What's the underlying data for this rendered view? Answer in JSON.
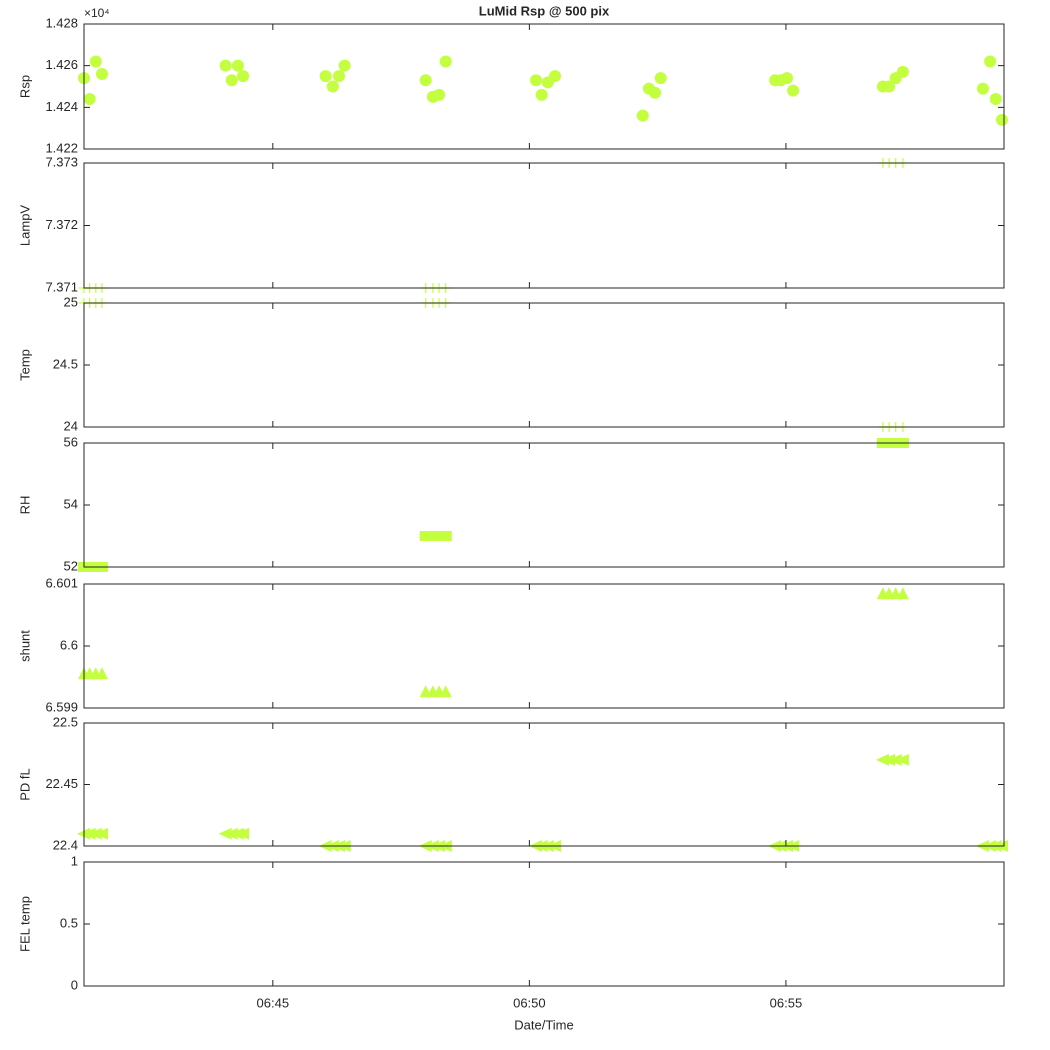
{
  "chart_data": [
    {
      "type": "scatter",
      "title": "LuMid Rsp @ 500 pix",
      "y_label": "Rsp",
      "y_exponent": "×10⁴",
      "marker": "circle",
      "color": "#c3ff3f",
      "x": [
        41.32,
        41.43,
        41.55,
        41.67,
        44.08,
        44.2,
        44.32,
        44.42,
        46.03,
        46.17,
        46.29,
        46.4,
        47.98,
        48.12,
        48.24,
        48.37,
        50.13,
        50.24,
        50.36,
        50.5,
        52.21,
        52.33,
        52.45,
        52.56,
        54.79,
        54.9,
        55.02,
        55.14,
        56.89,
        57.01,
        57.14,
        57.28,
        58.84,
        58.98,
        59.09,
        59.21
      ],
      "values": [
        1.4254,
        1.4244,
        1.4262,
        1.4256,
        1.426,
        1.4253,
        1.426,
        1.4255,
        1.4255,
        1.425,
        1.4255,
        1.426,
        1.4253,
        1.4245,
        1.4246,
        1.4262,
        1.4253,
        1.4246,
        1.4252,
        1.4255,
        1.4236,
        1.4249,
        1.4247,
        1.4254,
        1.4253,
        1.4253,
        1.4254,
        1.4248,
        1.425,
        1.425,
        1.4254,
        1.4257,
        1.4249,
        1.4262,
        1.4244,
        1.4234
      ],
      "xlim": [
        41.32,
        59.25
      ],
      "xticks": [
        45,
        50,
        55
      ],
      "ylim": [
        1.422,
        1.428
      ],
      "yticks": [
        1.422,
        1.424,
        1.426,
        1.428
      ]
    },
    {
      "type": "scatter",
      "y_label": "LampV",
      "marker": "plus",
      "color": "#c3ff3f",
      "x": [
        41.32,
        41.43,
        41.55,
        41.67,
        47.98,
        48.12,
        48.24,
        48.37,
        56.89,
        57.01,
        57.14,
        57.28
      ],
      "values": [
        7.371,
        7.371,
        7.371,
        7.371,
        7.371,
        7.371,
        7.371,
        7.371,
        7.373,
        7.373,
        7.373,
        7.373
      ],
      "xlim": [
        41.32,
        59.25
      ],
      "xticks": [
        45,
        50,
        55
      ],
      "ylim": [
        7.371,
        7.373
      ],
      "yticks": [
        7.371,
        7.372,
        7.373
      ]
    },
    {
      "type": "scatter",
      "y_label": "Temp",
      "marker": "plus",
      "color": "#c3ff3f",
      "x": [
        41.32,
        41.43,
        41.55,
        41.67,
        47.98,
        48.12,
        48.24,
        48.37,
        56.89,
        57.01,
        57.14,
        57.28
      ],
      "values": [
        25,
        25,
        25,
        25,
        25,
        25,
        25,
        25,
        24,
        24,
        24,
        24
      ],
      "xlim": [
        41.32,
        59.25
      ],
      "xticks": [
        45,
        50,
        55
      ],
      "ylim": [
        24,
        25
      ],
      "yticks": [
        24,
        24.5,
        25
      ]
    },
    {
      "type": "scatter",
      "y_label": "RH",
      "marker": "square",
      "color": "#c3ff3f",
      "x": [
        41.32,
        41.43,
        41.55,
        41.67,
        47.98,
        48.12,
        48.24,
        48.37,
        56.89,
        57.01,
        57.14,
        57.28
      ],
      "values": [
        52,
        52,
        52,
        52,
        53,
        53,
        53,
        53,
        56,
        56,
        56,
        56
      ],
      "xlim": [
        41.32,
        59.25
      ],
      "xticks": [
        45,
        50,
        55
      ],
      "ylim": [
        52,
        56
      ],
      "yticks": [
        52,
        54,
        56
      ]
    },
    {
      "type": "scatter",
      "y_label": "shunt",
      "marker": "triangle-up",
      "color": "#c3ff3f",
      "x": [
        41.32,
        41.43,
        41.55,
        41.67,
        47.98,
        48.12,
        48.24,
        48.37,
        56.89,
        57.01,
        57.14,
        57.28
      ],
      "values": [
        6.59956,
        6.59956,
        6.59956,
        6.59956,
        6.59927,
        6.59927,
        6.59927,
        6.59927,
        6.60085,
        6.60085,
        6.60085,
        6.60085
      ],
      "xlim": [
        41.32,
        59.25
      ],
      "xticks": [
        45,
        50,
        55
      ],
      "ylim": [
        6.599,
        6.601
      ],
      "yticks": [
        6.599,
        6.6,
        6.601
      ]
    },
    {
      "type": "scatter",
      "y_label": "PD fL",
      "marker": "triangle-left",
      "color": "#c3ff3f",
      "x": [
        41.32,
        41.43,
        41.55,
        41.67,
        44.08,
        44.2,
        44.32,
        44.42,
        46.03,
        46.17,
        46.29,
        46.4,
        47.98,
        48.12,
        48.24,
        48.37,
        50.13,
        50.24,
        50.36,
        50.5,
        54.79,
        54.9,
        55.02,
        55.14,
        56.89,
        57.01,
        57.14,
        57.28,
        58.84,
        58.98,
        59.09,
        59.21
      ],
      "values": [
        22.41,
        22.41,
        22.41,
        22.41,
        22.41,
        22.41,
        22.41,
        22.41,
        22.4,
        22.4,
        22.4,
        22.4,
        22.4,
        22.4,
        22.4,
        22.4,
        22.4,
        22.4,
        22.4,
        22.4,
        22.4,
        22.4,
        22.4,
        22.4,
        22.47,
        22.47,
        22.47,
        22.47,
        22.4,
        22.4,
        22.4,
        22.4
      ],
      "xlim": [
        41.32,
        59.25
      ],
      "xticks": [
        45,
        50,
        55
      ],
      "ylim": [
        22.4,
        22.5
      ],
      "yticks": [
        22.4,
        22.45,
        22.5
      ]
    },
    {
      "type": "scatter",
      "y_label": "FEL temp",
      "x_label": "Date/Time",
      "x": [],
      "values": [],
      "xlim": [
        41.32,
        59.25
      ],
      "xticks": [
        {
          "value": 45,
          "label": "06:45"
        },
        {
          "value": 50,
          "label": "06:50"
        },
        {
          "value": 55,
          "label": "06:55"
        }
      ],
      "ylim": [
        0,
        1
      ],
      "yticks": [
        0,
        0.5,
        1
      ]
    }
  ]
}
